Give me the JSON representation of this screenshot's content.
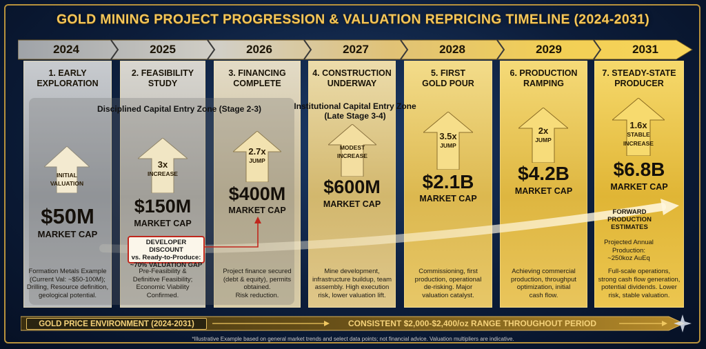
{
  "title": "GOLD MINING PROJECT PROGRESSION & VALUATION REPRICING TIMELINE (2024-2031)",
  "columns": [
    {
      "year": "2024",
      "stage_line1": "1. EARLY",
      "stage_line2": "EXPLORATION",
      "arrow_line1": "INITIAL",
      "arrow_line2": "VALUATION",
      "value": "$50M",
      "market_cap": "MARKET CAP",
      "desc": [
        "Formation Metals Example",
        "(Current Val: ~$50-100M);",
        "Drilling, Resource definition,",
        "geological potential."
      ]
    },
    {
      "year": "2025",
      "stage_line1": "2. FEASIBILITY",
      "stage_line2": "STUDY",
      "arrow_line1": "3x",
      "arrow_line2": "INCREASE",
      "value": "$150M",
      "market_cap": "MARKET CAP",
      "desc": [
        "Pre-Feasibility &",
        "Definitive Feasibility;",
        "Economic Viability",
        "Confirmed."
      ]
    },
    {
      "year": "2026",
      "stage_line1": "3. FINANCING",
      "stage_line2": "COMPLETE",
      "arrow_line1": "2.7x",
      "arrow_line2": "JUMP",
      "value": "$400M",
      "market_cap": "MARKET CAP",
      "desc": [
        "Project finance secured",
        "(debt & equity), permits",
        "obtained.",
        "Risk reduction."
      ]
    },
    {
      "year": "2027",
      "stage_line1": "4. CONSTRUCTION",
      "stage_line2": "UNDERWAY",
      "arrow_line1": "MODEST",
      "arrow_line2": "INCREASE",
      "value": "$600M",
      "market_cap": "MARKET CAP",
      "desc": [
        "Mine development,",
        "infrastructure buildup, team",
        "assembly. High execution",
        "risk, lower valuation lift."
      ]
    },
    {
      "year": "2028",
      "stage_line1": "5. FIRST",
      "stage_line2": "GOLD POUR",
      "arrow_line1": "3.5x",
      "arrow_line2": "JUMP",
      "value": "$2.1B",
      "market_cap": "MARKET CAP",
      "desc": [
        "Commissioning, first",
        "production, operational",
        "de-risking. Major",
        "valuation catalyst."
      ]
    },
    {
      "year": "2029",
      "stage_line1": "6. PRODUCTION",
      "stage_line2": "RAMPING",
      "arrow_line1": "2x",
      "arrow_line2": "JUMP",
      "value": "$4.2B",
      "market_cap": "MARKET CAP",
      "desc": [
        "Achieving commercial",
        "production, throughput",
        "optimization, initial",
        "cash flow."
      ]
    },
    {
      "year": "2031",
      "stage_line1": "7. STEADY-STATE",
      "stage_line2": "PRODUCER",
      "arrow_line1": "1.6x",
      "arrow_line2": "STABLE",
      "arrow_line3": "INCREASE",
      "value": "$6.8B",
      "market_cap": "MARKET CAP",
      "desc": [
        "Full-scale operations,",
        "strong cash flow generation,",
        "potential dividends. Lower",
        "risk, stable valuation."
      ]
    }
  ],
  "zones": {
    "disciplined": "Disciplined Capital Entry Zone (Stage 2-3)",
    "institutional_line1": "Institutional Capital Entry Zone",
    "institutional_line2": "(Late Stage 3-4)"
  },
  "discount": {
    "line1": "DEVELOPER DISCOUNT",
    "line2": "vs. Ready-to-Produce:",
    "line3": "~70% VALUATION GAP"
  },
  "forward": {
    "line1": "FORWARD",
    "line2": "PRODUCTION",
    "line3": "ESTIMATES"
  },
  "projected": {
    "line1": "Projected Annual",
    "line2": "Production:",
    "line3": "~250koz AuEq"
  },
  "gold_env": {
    "label": "GOLD PRICE ENVIRONMENT (2024-2031)",
    "range": "CONSISTENT $2,000-$2,400/oz RANGE THROUGHOUT PERIOD"
  },
  "footnote": "*Illustrative Example based on general market trends and select data points; not financial advice. Valuation multipliers are indicative.",
  "colors": {
    "gold": "#e6b84a",
    "accent_red": "#c0261c",
    "navy": "#0c1d3a"
  }
}
